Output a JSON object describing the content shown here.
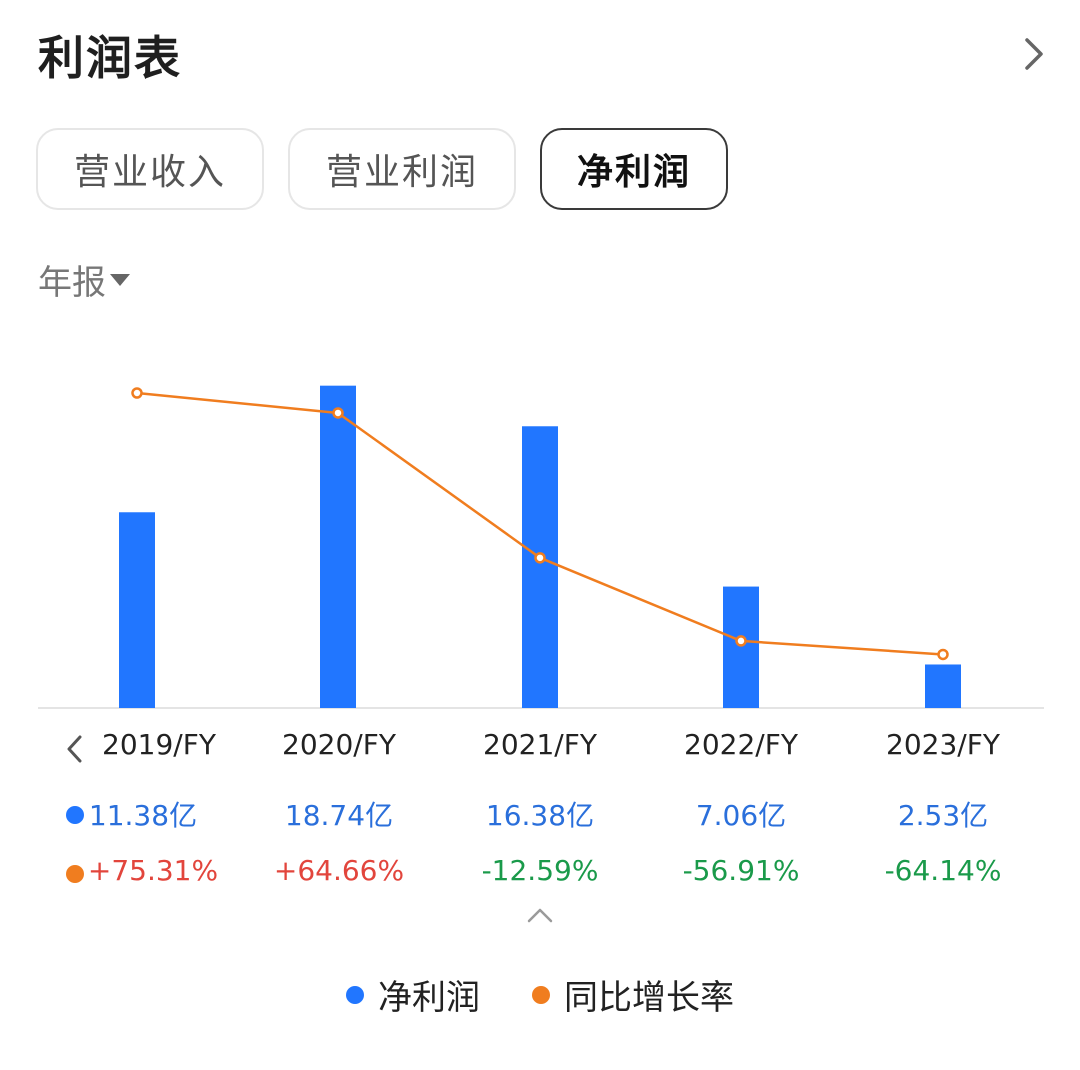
{
  "header": {
    "title": "利润表"
  },
  "tabs": [
    {
      "label": "营业收入",
      "active": false
    },
    {
      "label": "营业利润",
      "active": false
    },
    {
      "label": "净利润",
      "active": true
    }
  ],
  "period_selector": {
    "label": "年报"
  },
  "colors": {
    "bar": "#2176ff",
    "line": "#f07d1f",
    "positive": "#e2453c",
    "negative": "#1a9a4a",
    "net_value_text": "#2a6fdb"
  },
  "table": {
    "net_profit_values": [
      "11.38亿",
      "18.74亿",
      "16.38亿",
      "7.06亿",
      "2.53亿"
    ],
    "yoy_values": [
      "+75.31%",
      "+64.66%",
      "-12.59%",
      "-56.91%",
      "-64.14%"
    ]
  },
  "legend": [
    {
      "label": "净利润",
      "color": "#2176ff"
    },
    {
      "label": "同比增长率",
      "color": "#f07d1f"
    }
  ],
  "chart_data": {
    "type": "bar",
    "categories": [
      "2019/FY",
      "2020/FY",
      "2021/FY",
      "2022/FY",
      "2023/FY"
    ],
    "series": [
      {
        "name": "净利润",
        "type": "bar",
        "unit": "亿",
        "values": [
          11.38,
          18.74,
          16.38,
          7.06,
          2.53
        ]
      },
      {
        "name": "同比增长率",
        "type": "line",
        "unit": "%",
        "values": [
          75.31,
          64.66,
          -12.59,
          -56.91,
          -64.14
        ]
      }
    ],
    "legend_position": "bottom",
    "grid": false
  }
}
